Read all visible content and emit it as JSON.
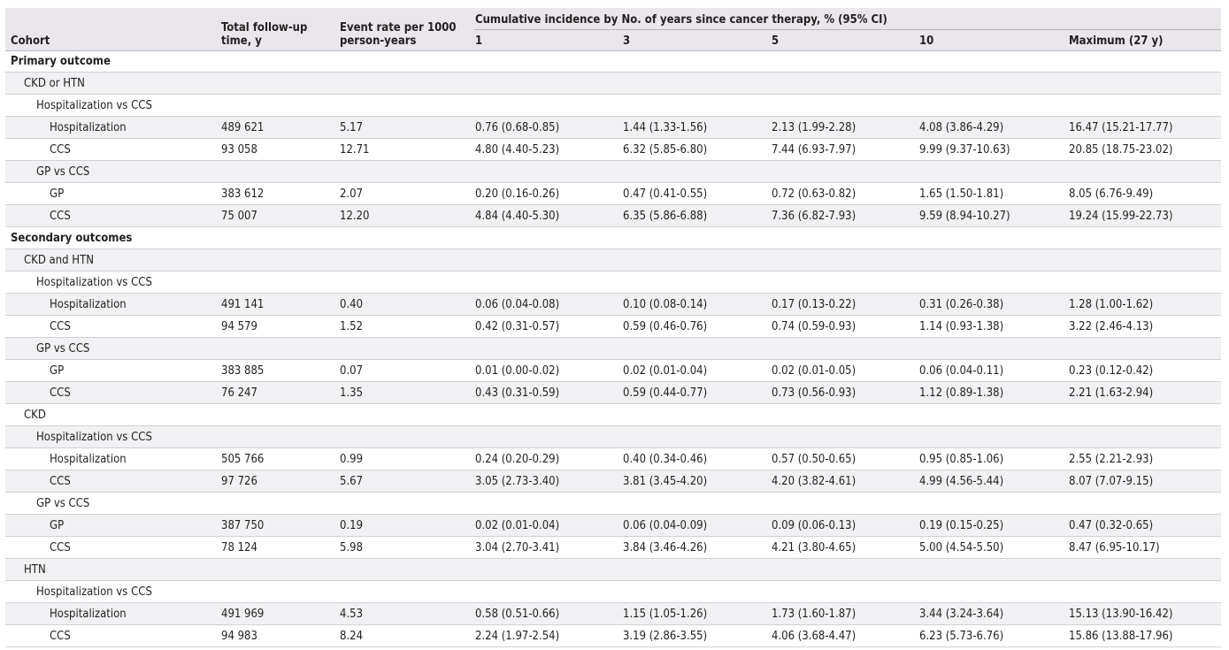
{
  "header": {
    "cohort": "Cohort",
    "followup": "Total follow-up\ntime, y",
    "event_rate": "Event rate per 1000\nperson-years",
    "group": "Cumulative incidence by No. of years since cancer therapy, % (95% CI)",
    "y1": "1",
    "y3": "3",
    "y5": "5",
    "y10": "10",
    "ymax": "Maximum (27 y)"
  },
  "rows": [
    {
      "label": "Primary outcome",
      "level": 0
    },
    {
      "label": "CKD or HTN",
      "level": 1
    },
    {
      "label": "Hospitalization vs CCS",
      "level": 2
    },
    {
      "label": "Hospitalization",
      "level": 3,
      "followup": "489 621",
      "rate": "5.17",
      "y1": "0.76 (0.68-0.85)",
      "y3": "1.44 (1.33-1.56)",
      "y5": "2.13 (1.99-2.28)",
      "y10": "4.08 (3.86-4.29)",
      "ymax": "16.47 (15.21-17.77)"
    },
    {
      "label": "CCS",
      "level": 3,
      "followup": "93 058",
      "rate": "12.71",
      "y1": "4.80 (4.40-5.23)",
      "y3": "6.32 (5.85-6.80)",
      "y5": "7.44 (6.93-7.97)",
      "y10": "9.99 (9.37-10.63)",
      "ymax": "20.85 (18.75-23.02)"
    },
    {
      "label": "GP vs CCS",
      "level": 2
    },
    {
      "label": "GP",
      "level": 3,
      "followup": "383 612",
      "rate": "2.07",
      "y1": "0.20 (0.16-0.26)",
      "y3": "0.47 (0.41-0.55)",
      "y5": "0.72 (0.63-0.82)",
      "y10": "1.65 (1.50-1.81)",
      "ymax": "8.05 (6.76-9.49)"
    },
    {
      "label": "CCS",
      "level": 3,
      "followup": "75 007",
      "rate": "12.20",
      "y1": "4.84 (4.40-5.30)",
      "y3": "6.35 (5.86-6.88)",
      "y5": "7.36 (6.82-7.93)",
      "y10": "9.59 (8.94-10.27)",
      "ymax": "19.24 (15.99-22.73)"
    },
    {
      "label": "Secondary outcomes",
      "level": 0
    },
    {
      "label": "CKD and HTN",
      "level": 1
    },
    {
      "label": "Hospitalization vs CCS",
      "level": 2
    },
    {
      "label": "Hospitalization",
      "level": 3,
      "followup": "491 141",
      "rate": "0.40",
      "y1": "0.06 (0.04-0.08)",
      "y3": "0.10 (0.08-0.14)",
      "y5": "0.17 (0.13-0.22)",
      "y10": "0.31 (0.26-0.38)",
      "ymax": "1.28 (1.00-1.62)"
    },
    {
      "label": "CCS",
      "level": 3,
      "followup": "94 579",
      "rate": "1.52",
      "y1": "0.42 (0.31-0.57)",
      "y3": "0.59 (0.46-0.76)",
      "y5": "0.74 (0.59-0.93)",
      "y10": "1.14 (0.93-1.38)",
      "ymax": "3.22 (2.46-4.13)"
    },
    {
      "label": "GP vs CCS",
      "level": 2
    },
    {
      "label": "GP",
      "level": 3,
      "followup": "383 885",
      "rate": "0.07",
      "y1": "0.01 (0.00-0.02)",
      "y3": "0.02 (0.01-0.04)",
      "y5": "0.02 (0.01-0.05)",
      "y10": "0.06 (0.04-0.11)",
      "ymax": "0.23 (0.12-0.42)"
    },
    {
      "label": "CCS",
      "level": 3,
      "followup": "76 247",
      "rate": "1.35",
      "y1": "0.43 (0.31-0.59)",
      "y3": "0.59 (0.44-0.77)",
      "y5": "0.73 (0.56-0.93)",
      "y10": "1.12 (0.89-1.38)",
      "ymax": "2.21 (1.63-2.94)"
    },
    {
      "label": "CKD",
      "level": 1
    },
    {
      "label": "Hospitalization vs CCS",
      "level": 2
    },
    {
      "label": "Hospitalization",
      "level": 3,
      "followup": "505 766",
      "rate": "0.99",
      "y1": "0.24 (0.20-0.29)",
      "y3": "0.40 (0.34-0.46)",
      "y5": "0.57 (0.50-0.65)",
      "y10": "0.95 (0.85-1.06)",
      "ymax": "2.55 (2.21-2.93)"
    },
    {
      "label": "CCS",
      "level": 3,
      "followup": "97 726",
      "rate": "5.67",
      "y1": "3.05 (2.73-3.40)",
      "y3": "3.81 (3.45-4.20)",
      "y5": "4.20 (3.82-4.61)",
      "y10": "4.99 (4.56-5.44)",
      "ymax": "8.07 (7.07-9.15)"
    },
    {
      "label": "GP vs CCS",
      "level": 2
    },
    {
      "label": "GP",
      "level": 3,
      "followup": "387 750",
      "rate": "0.19",
      "y1": "0.02 (0.01-0.04)",
      "y3": "0.06 (0.04-0.09)",
      "y5": "0.09 (0.06-0.13)",
      "y10": "0.19 (0.15-0.25)",
      "ymax": "0.47 (0.32-0.65)"
    },
    {
      "label": "CCS",
      "level": 3,
      "followup": "78 124",
      "rate": "5.98",
      "y1": "3.04 (2.70-3.41)",
      "y3": "3.84 (3.46-4.26)",
      "y5": "4.21 (3.80-4.65)",
      "y10": "5.00 (4.54-5.50)",
      "ymax": "8.47 (6.95-10.17)"
    },
    {
      "label": "HTN",
      "level": 1
    },
    {
      "label": "Hospitalization vs CCS",
      "level": 2
    },
    {
      "label": "Hospitalization",
      "level": 3,
      "followup": "491 969",
      "rate": "4.53",
      "y1": "0.58 (0.51-0.66)",
      "y3": "1.15 (1.05-1.26)",
      "y5": "1.73 (1.60-1.87)",
      "y10": "3.44 (3.24-3.64)",
      "ymax": "15.13 (13.90-16.42)"
    },
    {
      "label": "CCS",
      "level": 3,
      "followup": "94 983",
      "rate": "8.24",
      "y1": "2.24 (1.97-2.54)",
      "y3": "3.19 (2.86-3.55)",
      "y5": "4.06 (3.68-4.47)",
      "y10": "6.23 (5.73-6.76)",
      "ymax": "15.86 (13.88-17.96)"
    }
  ]
}
